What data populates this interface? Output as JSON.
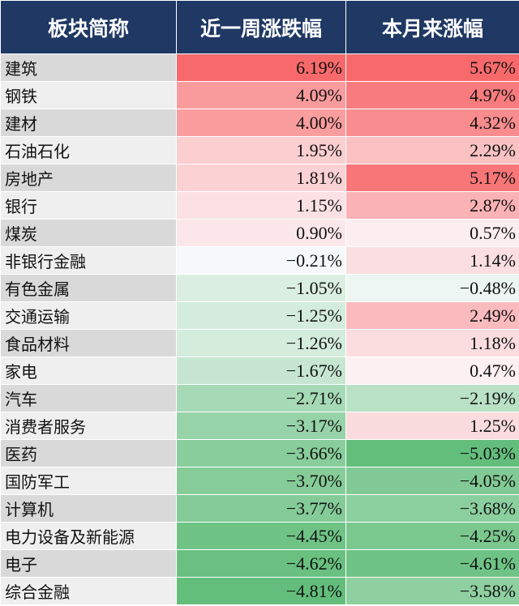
{
  "chart_data": {
    "type": "table",
    "columns": [
      "板块简称",
      "近一周涨跌幅",
      "本月来涨幅"
    ],
    "rows": [
      {
        "name": "建筑",
        "week": "6.19%",
        "month": "5.67%",
        "week_v": 6.19,
        "month_v": 5.67
      },
      {
        "name": "钢铁",
        "week": "4.09%",
        "month": "4.97%",
        "week_v": 4.09,
        "month_v": 4.97
      },
      {
        "name": "建材",
        "week": "4.00%",
        "month": "4.32%",
        "week_v": 4.0,
        "month_v": 4.32
      },
      {
        "name": "石油石化",
        "week": "1.95%",
        "month": "2.29%",
        "week_v": 1.95,
        "month_v": 2.29
      },
      {
        "name": "房地产",
        "week": "1.81%",
        "month": "5.17%",
        "week_v": 1.81,
        "month_v": 5.17
      },
      {
        "name": "银行",
        "week": "1.15%",
        "month": "2.87%",
        "week_v": 1.15,
        "month_v": 2.87
      },
      {
        "name": "煤炭",
        "week": "0.90%",
        "month": "0.57%",
        "week_v": 0.9,
        "month_v": 0.57
      },
      {
        "name": "非银行金融",
        "week": "−0.21%",
        "month": "1.14%",
        "week_v": -0.21,
        "month_v": 1.14
      },
      {
        "name": "有色金属",
        "week": "−1.05%",
        "month": "−0.48%",
        "week_v": -1.05,
        "month_v": -0.48
      },
      {
        "name": "交通运输",
        "week": "−1.25%",
        "month": "2.49%",
        "week_v": -1.25,
        "month_v": 2.49
      },
      {
        "name": "食品材料",
        "week": "−1.26%",
        "month": "1.18%",
        "week_v": -1.26,
        "month_v": 1.18
      },
      {
        "name": "家电",
        "week": "−1.67%",
        "month": "0.47%",
        "week_v": -1.67,
        "month_v": 0.47
      },
      {
        "name": "汽车",
        "week": "−2.71%",
        "month": "−2.19%",
        "week_v": -2.71,
        "month_v": -2.19
      },
      {
        "name": "消费者服务",
        "week": "−3.17%",
        "month": "1.25%",
        "week_v": -3.17,
        "month_v": 1.25
      },
      {
        "name": "医药",
        "week": "−3.66%",
        "month": "−5.03%",
        "week_v": -3.66,
        "month_v": -5.03
      },
      {
        "name": "国防军工",
        "week": "−3.70%",
        "month": "−4.05%",
        "week_v": -3.7,
        "month_v": -4.05
      },
      {
        "name": "计算机",
        "week": "−3.77%",
        "month": "−3.68%",
        "week_v": -3.77,
        "month_v": -3.68
      },
      {
        "name": "电力设备及新能源",
        "week": "−4.45%",
        "month": "−4.25%",
        "week_v": -4.45,
        "month_v": -4.25
      },
      {
        "name": "电子",
        "week": "−4.62%",
        "month": "−4.61%",
        "week_v": -4.62,
        "month_v": -4.61
      },
      {
        "name": "综合金融",
        "week": "−4.81%",
        "month": "−3.58%",
        "week_v": -4.81,
        "month_v": -3.58
      }
    ]
  },
  "colors": {
    "header_bg": "#1f3864",
    "name_bg_a": "#d9d9d9",
    "name_bg_b": "#efefef",
    "pos_max": "#f8696b",
    "neg_max": "#63be7b",
    "neutral": "#fcfcff"
  }
}
